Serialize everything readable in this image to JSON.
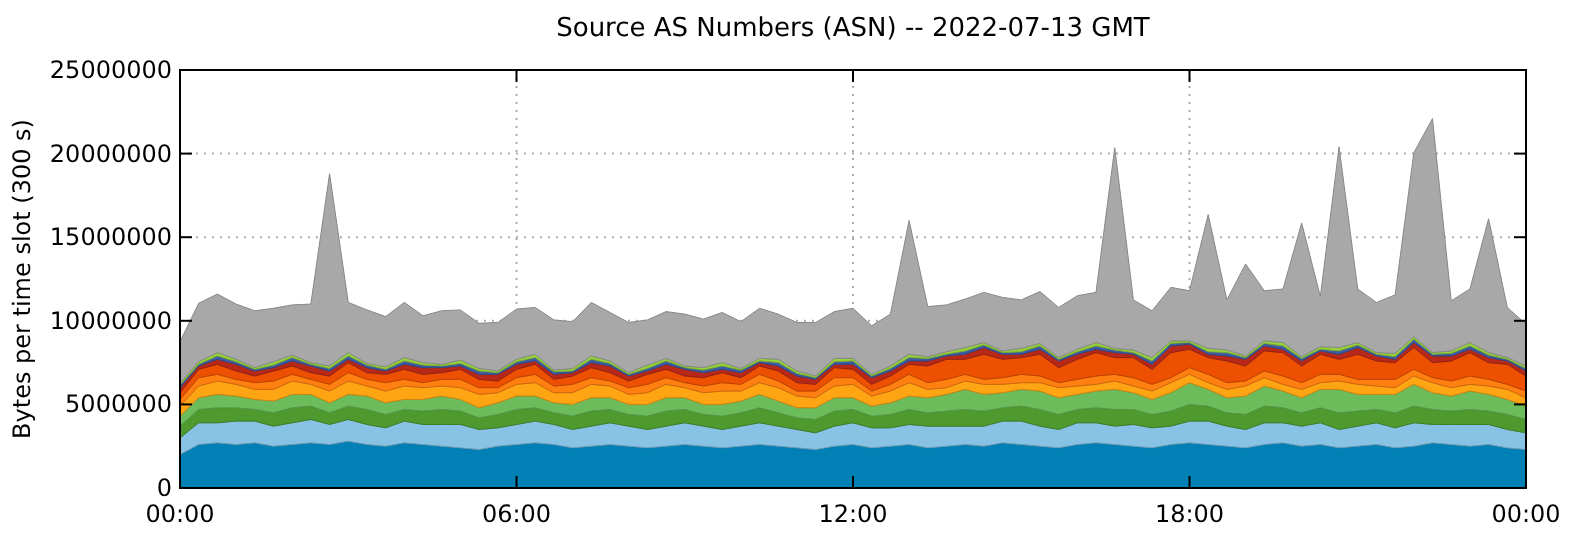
{
  "chart_data": {
    "type": "area",
    "stacked": true,
    "title": "Source AS Numbers (ASN) -- 2022-07-13 GMT",
    "ylabel": "Bytes per time slot (300 s)",
    "x": [
      0,
      0.333,
      0.667,
      1,
      1.333,
      1.667,
      2,
      2.333,
      2.667,
      3,
      3.333,
      3.667,
      4,
      4.333,
      4.667,
      5,
      5.333,
      5.667,
      6,
      6.333,
      6.667,
      7,
      7.333,
      7.667,
      8,
      8.333,
      8.667,
      9,
      9.333,
      9.667,
      10,
      10.333,
      10.667,
      11,
      11.333,
      11.667,
      12,
      12.333,
      12.667,
      13,
      13.333,
      13.667,
      14,
      14.333,
      14.667,
      15,
      15.333,
      15.667,
      16,
      16.333,
      16.667,
      17,
      17.333,
      17.667,
      18,
      18.333,
      18.667,
      19,
      19.333,
      19.667,
      20,
      20.333,
      20.667,
      21,
      21.333,
      21.667,
      22,
      22.333,
      22.667,
      23,
      23.333,
      23.667,
      24
    ],
    "xlim": [
      0,
      24
    ],
    "xticks": [
      {
        "value": 0,
        "label": "00:00"
      },
      {
        "value": 6,
        "label": "06:00"
      },
      {
        "value": 12,
        "label": "12:00"
      },
      {
        "value": 18,
        "label": "18:00"
      },
      {
        "value": 24,
        "label": "00:00"
      }
    ],
    "ylim": [
      0,
      25000000
    ],
    "yticks": [
      0,
      5000000,
      10000000,
      15000000,
      20000000,
      25000000
    ],
    "grid": true,
    "series": [
      {
        "color": "#0080b4",
        "values": [
          2000000,
          2600000,
          2700000,
          2600000,
          2700000,
          2500000,
          2600000,
          2700000,
          2600000,
          2800000,
          2600000,
          2500000,
          2700000,
          2600000,
          2500000,
          2400000,
          2300000,
          2500000,
          2600000,
          2700000,
          2600000,
          2400000,
          2500000,
          2600000,
          2500000,
          2400000,
          2500000,
          2600000,
          2500000,
          2400000,
          2500000,
          2600000,
          2500000,
          2400000,
          2300000,
          2500000,
          2600000,
          2400000,
          2500000,
          2600000,
          2400000,
          2500000,
          2600000,
          2500000,
          2700000,
          2600000,
          2500000,
          2400000,
          2600000,
          2700000,
          2600000,
          2500000,
          2400000,
          2600000,
          2700000,
          2600000,
          2500000,
          2400000,
          2600000,
          2700000,
          2500000,
          2600000,
          2400000,
          2500000,
          2600000,
          2400000,
          2500000,
          2700000,
          2600000,
          2500000,
          2600000,
          2400000,
          2300000
        ]
      },
      {
        "color": "#88c2e4",
        "values": [
          1000000,
          1300000,
          1200000,
          1400000,
          1300000,
          1200000,
          1300000,
          1400000,
          1200000,
          1300000,
          1200000,
          1100000,
          1300000,
          1200000,
          1300000,
          1400000,
          1200000,
          1100000,
          1200000,
          1300000,
          1200000,
          1100000,
          1200000,
          1300000,
          1200000,
          1100000,
          1200000,
          1300000,
          1200000,
          1100000,
          1200000,
          1300000,
          1200000,
          1100000,
          1000000,
          1200000,
          1300000,
          1200000,
          1100000,
          1200000,
          1300000,
          1200000,
          1100000,
          1200000,
          1300000,
          1400000,
          1200000,
          1100000,
          1300000,
          1200000,
          1100000,
          1300000,
          1200000,
          1100000,
          1300000,
          1400000,
          1200000,
          1100000,
          1300000,
          1200000,
          1200000,
          1300000,
          1100000,
          1200000,
          1300000,
          1200000,
          1400000,
          1100000,
          1200000,
          1300000,
          1200000,
          1100000,
          1000000
        ]
      },
      {
        "color": "#4e9a2e",
        "values": [
          700000,
          800000,
          900000,
          800000,
          700000,
          800000,
          900000,
          800000,
          700000,
          800000,
          900000,
          800000,
          700000,
          800000,
          900000,
          800000,
          700000,
          800000,
          900000,
          800000,
          700000,
          800000,
          900000,
          800000,
          700000,
          800000,
          900000,
          800000,
          700000,
          800000,
          800000,
          900000,
          800000,
          700000,
          800000,
          900000,
          800000,
          700000,
          800000,
          900000,
          800000,
          900000,
          1000000,
          900000,
          800000,
          900000,
          1000000,
          900000,
          800000,
          900000,
          1000000,
          900000,
          800000,
          900000,
          1000000,
          900000,
          800000,
          900000,
          1000000,
          900000,
          800000,
          900000,
          1000000,
          900000,
          800000,
          900000,
          1000000,
          900000,
          800000,
          900000,
          800000,
          900000,
          800000
        ]
      },
      {
        "color": "#6cbc5c",
        "values": [
          600000,
          700000,
          800000,
          700000,
          600000,
          700000,
          800000,
          700000,
          600000,
          700000,
          800000,
          700000,
          600000,
          700000,
          800000,
          700000,
          600000,
          700000,
          800000,
          700000,
          600000,
          700000,
          800000,
          700000,
          600000,
          700000,
          800000,
          700000,
          600000,
          700000,
          700000,
          800000,
          700000,
          600000,
          700000,
          800000,
          700000,
          600000,
          700000,
          800000,
          900000,
          1000000,
          1200000,
          1000000,
          900000,
          1000000,
          1100000,
          1000000,
          900000,
          1000000,
          1200000,
          1000000,
          900000,
          1100000,
          1300000,
          1000000,
          900000,
          1100000,
          1200000,
          1000000,
          900000,
          1100000,
          1400000,
          1000000,
          900000,
          1100000,
          1300000,
          1000000,
          900000,
          1100000,
          1000000,
          900000,
          800000
        ]
      },
      {
        "color": "#ffa514",
        "values": [
          600000,
          700000,
          800000,
          700000,
          600000,
          700000,
          800000,
          600000,
          700000,
          800000,
          600000,
          700000,
          800000,
          700000,
          600000,
          700000,
          800000,
          600000,
          700000,
          800000,
          600000,
          700000,
          800000,
          700000,
          600000,
          700000,
          800000,
          600000,
          700000,
          800000,
          600000,
          700000,
          800000,
          700000,
          600000,
          700000,
          800000,
          600000,
          700000,
          800000,
          500000,
          400000,
          500000,
          600000,
          500000,
          400000,
          500000,
          600000,
          500000,
          400000,
          500000,
          400000,
          500000,
          600000,
          500000,
          400000,
          500000,
          600000,
          500000,
          400000,
          500000,
          400000,
          500000,
          600000,
          500000,
          400000,
          500000,
          600000,
          500000,
          400000,
          500000,
          600000,
          500000
        ]
      },
      {
        "color": "#ff8010",
        "values": [
          400000,
          500000,
          400000,
          300000,
          400000,
          500000,
          400000,
          300000,
          400000,
          500000,
          400000,
          500000,
          400000,
          300000,
          400000,
          500000,
          400000,
          300000,
          400000,
          500000,
          400000,
          500000,
          400000,
          300000,
          400000,
          500000,
          400000,
          300000,
          400000,
          500000,
          400000,
          500000,
          400000,
          300000,
          400000,
          500000,
          400000,
          300000,
          400000,
          500000,
          400000,
          500000,
          400000,
          300000,
          400000,
          500000,
          400000,
          300000,
          400000,
          500000,
          400000,
          500000,
          400000,
          300000,
          400000,
          500000,
          400000,
          300000,
          400000,
          500000,
          400000,
          500000,
          400000,
          300000,
          400000,
          500000,
          400000,
          300000,
          400000,
          500000,
          400000,
          300000,
          400000
        ]
      },
      {
        "color": "#ec5000",
        "values": [
          400000,
          500000,
          600000,
          500000,
          400000,
          600000,
          500000,
          400000,
          500000,
          600000,
          400000,
          500000,
          600000,
          500000,
          400000,
          600000,
          500000,
          400000,
          500000,
          600000,
          400000,
          500000,
          600000,
          500000,
          400000,
          600000,
          500000,
          400000,
          500000,
          600000,
          400000,
          500000,
          600000,
          500000,
          400000,
          600000,
          500000,
          400000,
          500000,
          600000,
          1000000,
          1200000,
          900000,
          1500000,
          1100000,
          1000000,
          1300000,
          900000,
          1200000,
          1400000,
          1000000,
          1200000,
          900000,
          1500000,
          1100000,
          1000000,
          1300000,
          900000,
          1200000,
          1400000,
          1000000,
          1200000,
          900000,
          1500000,
          1100000,
          1000000,
          1300000,
          900000,
          1200000,
          1400000,
          1000000,
          1200000,
          900000
        ]
      },
      {
        "color": "#b82818",
        "values": [
          300000,
          200000,
          300000,
          400000,
          300000,
          200000,
          300000,
          400000,
          300000,
          200000,
          300000,
          200000,
          300000,
          400000,
          300000,
          200000,
          300000,
          400000,
          300000,
          200000,
          300000,
          200000,
          300000,
          400000,
          300000,
          200000,
          300000,
          400000,
          300000,
          200000,
          300000,
          200000,
          300000,
          400000,
          300000,
          200000,
          300000,
          400000,
          300000,
          200000,
          300000,
          200000,
          300000,
          400000,
          300000,
          200000,
          300000,
          400000,
          300000,
          200000,
          300000,
          200000,
          300000,
          400000,
          300000,
          200000,
          300000,
          400000,
          300000,
          200000,
          300000,
          200000,
          300000,
          400000,
          300000,
          200000,
          300000,
          400000,
          300000,
          200000,
          300000,
          200000,
          300000
        ]
      },
      {
        "color": "#3c5ca8",
        "values": [
          150000,
          100000,
          200000,
          150000,
          100000,
          150000,
          200000,
          100000,
          150000,
          200000,
          150000,
          100000,
          200000,
          150000,
          100000,
          150000,
          200000,
          100000,
          150000,
          200000,
          150000,
          100000,
          200000,
          150000,
          100000,
          150000,
          200000,
          100000,
          150000,
          200000,
          150000,
          100000,
          200000,
          150000,
          100000,
          150000,
          200000,
          100000,
          150000,
          200000,
          150000,
          100000,
          200000,
          150000,
          100000,
          150000,
          200000,
          100000,
          150000,
          200000,
          150000,
          100000,
          200000,
          150000,
          100000,
          150000,
          200000,
          100000,
          150000,
          200000,
          150000,
          100000,
          200000,
          150000,
          100000,
          150000,
          200000,
          100000,
          150000,
          200000,
          150000,
          100000,
          150000
        ]
      },
      {
        "color": "#96d23c",
        "values": [
          100000,
          150000,
          200000,
          150000,
          100000,
          200000,
          150000,
          100000,
          150000,
          200000,
          100000,
          150000,
          200000,
          150000,
          100000,
          200000,
          150000,
          100000,
          150000,
          200000,
          100000,
          150000,
          200000,
          150000,
          100000,
          200000,
          150000,
          100000,
          150000,
          200000,
          100000,
          150000,
          200000,
          150000,
          100000,
          200000,
          150000,
          100000,
          150000,
          200000,
          100000,
          150000,
          200000,
          150000,
          100000,
          200000,
          150000,
          100000,
          150000,
          200000,
          100000,
          150000,
          200000,
          150000,
          100000,
          200000,
          150000,
          100000,
          150000,
          200000,
          100000,
          150000,
          200000,
          150000,
          100000,
          200000,
          150000,
          100000,
          150000,
          200000,
          150000,
          100000,
          150000
        ]
      },
      {
        "color": "#a8a8a8",
        "values": [
          2500000,
          3500000,
          3500000,
          3300000,
          3400000,
          3200000,
          3000000,
          3500000,
          11500000,
          3000000,
          3200000,
          3000000,
          3300000,
          2800000,
          3200000,
          3000000,
          2700000,
          2900000,
          3000000,
          2800000,
          3000000,
          2800000,
          3200000,
          2900000,
          3000000,
          2700000,
          2800000,
          3100000,
          2900000,
          3000000,
          2800000,
          3000000,
          2700000,
          2900000,
          3200000,
          2800000,
          3000000,
          2900000,
          3100000,
          8000000,
          3000000,
          2800000,
          2900000,
          3000000,
          3200000,
          2900000,
          3100000,
          3000000,
          3200000,
          3000000,
          12000000,
          3000000,
          2800000,
          3200000,
          3000000,
          8000000,
          3000000,
          5500000,
          3000000,
          3200000,
          8000000,
          3000000,
          12000000,
          3200000,
          3000000,
          3500000,
          11000000,
          14000000,
          3000000,
          3200000,
          8000000,
          3000000,
          2500000
        ]
      }
    ]
  }
}
